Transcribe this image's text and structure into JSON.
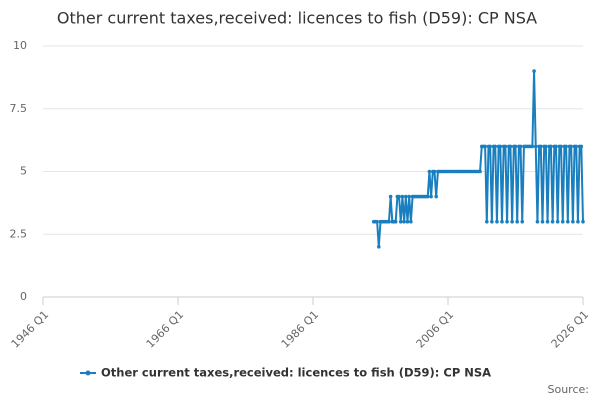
{
  "chart_data": {
    "type": "line",
    "title": "Other current taxes,received: licences to fish (D59): CP NSA",
    "source": "Source:",
    "x": [
      "1995 Q1",
      "1995 Q2",
      "1995 Q3",
      "1995 Q4",
      "1996 Q1",
      "1996 Q2",
      "1996 Q3",
      "1996 Q4",
      "1997 Q1",
      "1997 Q2",
      "1997 Q3",
      "1997 Q4",
      "1998 Q1",
      "1998 Q2",
      "1998 Q3",
      "1998 Q4",
      "1999 Q1",
      "1999 Q2",
      "1999 Q3",
      "1999 Q4",
      "2000 Q1",
      "2000 Q2",
      "2000 Q3",
      "2000 Q4",
      "2001 Q1",
      "2001 Q2",
      "2001 Q3",
      "2001 Q4",
      "2002 Q1",
      "2002 Q2",
      "2002 Q3",
      "2002 Q4",
      "2003 Q1",
      "2003 Q2",
      "2003 Q3",
      "2003 Q4",
      "2004 Q1",
      "2004 Q2",
      "2004 Q3",
      "2004 Q4",
      "2005 Q1",
      "2005 Q2",
      "2005 Q3",
      "2005 Q4",
      "2006 Q1",
      "2006 Q2",
      "2006 Q3",
      "2006 Q4",
      "2007 Q1",
      "2007 Q2",
      "2007 Q3",
      "2007 Q4",
      "2008 Q1",
      "2008 Q2",
      "2008 Q3",
      "2008 Q4",
      "2009 Q1",
      "2009 Q2",
      "2009 Q3",
      "2009 Q4",
      "2010 Q1",
      "2010 Q2",
      "2010 Q3",
      "2010 Q4",
      "2011 Q1",
      "2011 Q2",
      "2011 Q3",
      "2011 Q4",
      "2012 Q1",
      "2012 Q2",
      "2012 Q3",
      "2012 Q4",
      "2013 Q1",
      "2013 Q2",
      "2013 Q3",
      "2013 Q4",
      "2014 Q1",
      "2014 Q2",
      "2014 Q3",
      "2014 Q4",
      "2015 Q1",
      "2015 Q2",
      "2015 Q3",
      "2015 Q4",
      "2016 Q1",
      "2016 Q2",
      "2016 Q3",
      "2016 Q4",
      "2017 Q1",
      "2017 Q2",
      "2017 Q3",
      "2017 Q4",
      "2018 Q1",
      "2018 Q2",
      "2018 Q3",
      "2018 Q4",
      "2019 Q1",
      "2019 Q2",
      "2019 Q3",
      "2019 Q4",
      "2020 Q1",
      "2020 Q2",
      "2020 Q3",
      "2020 Q4",
      "2021 Q1",
      "2021 Q2",
      "2021 Q3",
      "2021 Q4",
      "2022 Q1",
      "2022 Q2",
      "2022 Q3",
      "2022 Q4",
      "2023 Q1",
      "2023 Q2",
      "2023 Q3",
      "2023 Q4",
      "2024 Q1",
      "2024 Q2",
      "2024 Q3",
      "2024 Q4",
      "2025 Q1",
      "2025 Q2",
      "2025 Q3",
      "2025 Q4",
      "2026 Q1"
    ],
    "series": [
      {
        "name": "Other current taxes,received: licences to fish (D59): CP NSA",
        "color": "#1a7fbf",
        "values": [
          3,
          3,
          3,
          2,
          3,
          3,
          3,
          3,
          3,
          3,
          4,
          3,
          3,
          3,
          4,
          4,
          3,
          4,
          3,
          4,
          3,
          4,
          3,
          4,
          4,
          4,
          4,
          4,
          4,
          4,
          4,
          4,
          4,
          5,
          4,
          5,
          5,
          4,
          5,
          5,
          5,
          5,
          5,
          5,
          5,
          5,
          5,
          5,
          5,
          5,
          5,
          5,
          5,
          5,
          5,
          5,
          5,
          5,
          5,
          5,
          5,
          5,
          5,
          5,
          6,
          6,
          6,
          3,
          6,
          6,
          3,
          6,
          6,
          3,
          6,
          6,
          3,
          6,
          6,
          3,
          6,
          6,
          3,
          6,
          6,
          3,
          6,
          6,
          3,
          6,
          6,
          6,
          6,
          6,
          6,
          9,
          6,
          3,
          6,
          6,
          3,
          6,
          6,
          3,
          6,
          6,
          3,
          6,
          6,
          3,
          6,
          6,
          3,
          6,
          6,
          3,
          6,
          6,
          3,
          6,
          6,
          3,
          6,
          6,
          3
        ]
      }
    ],
    "xlim": [
      "1946 Q1",
      "2026 Q1"
    ],
    "xticks": [
      "1946 Q1",
      "1966 Q1",
      "1986 Q1",
      "2006 Q1",
      "2026 Q1"
    ],
    "ylim": [
      0,
      10
    ],
    "yticks": [
      0,
      2.5,
      5,
      7.5,
      10
    ],
    "grid": true
  }
}
